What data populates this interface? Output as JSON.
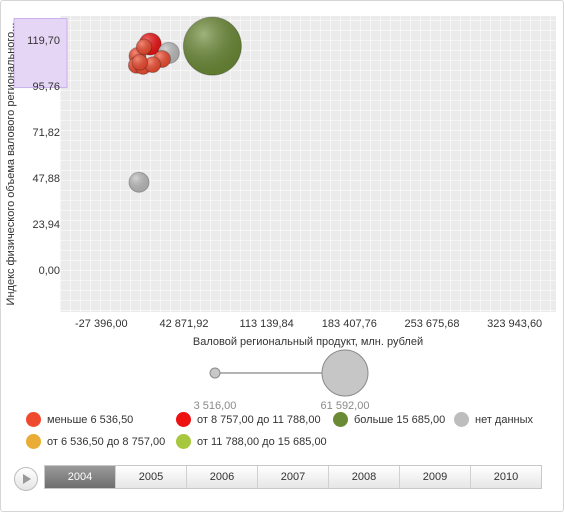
{
  "chart_data": {
    "type": "bubble",
    "title": "",
    "xlabel": "Валовой региональный продукт, млн. рублей",
    "ylabel": "Индекс физического объема валового регионального...",
    "xlim": [
      -62530,
      359078
    ],
    "ylim": [
      -21,
      133
    ],
    "x_ticks": [
      "-27 396,00",
      "42 871,92",
      "113 139,84",
      "183 407,76",
      "253 675,68",
      "323 943,60"
    ],
    "x_tick_values": [
      -27396,
      42871.92,
      113139.84,
      183407.76,
      253675.68,
      323943.6
    ],
    "y_ticks": [
      "119,70",
      "95,76",
      "71,82",
      "47,88",
      "23,94",
      "0,00"
    ],
    "y_tick_values": [
      119.7,
      95.76,
      71.82,
      47.88,
      23.94,
      0
    ],
    "highlighted_y_range": [
      95.76,
      131.67
    ],
    "grid": true,
    "points": [
      {
        "x": 14100,
        "y": 118.4,
        "size": 9000,
        "group": 1
      },
      {
        "x": 8900,
        "y": 117.0,
        "size": 4300,
        "group": 0
      },
      {
        "x": 3300,
        "y": 112.2,
        "size": 5200,
        "group": 0
      },
      {
        "x": 2500,
        "y": 107.4,
        "size": 4800,
        "group": 0
      },
      {
        "x": 5300,
        "y": 108.9,
        "size": 4500,
        "group": 0
      },
      {
        "x": 8100,
        "y": 106.8,
        "size": 4700,
        "group": 0
      },
      {
        "x": 16200,
        "y": 107.7,
        "size": 4600,
        "group": 0
      },
      {
        "x": 24200,
        "y": 110.6,
        "size": 5200,
        "group": 0
      },
      {
        "x": 29900,
        "y": 113.8,
        "size": 8200,
        "group": 3
      },
      {
        "x": 67000,
        "y": 117.3,
        "size": 61592,
        "group": 2
      },
      {
        "x": 4600,
        "y": 46.5,
        "size": 7300,
        "group": 3
      }
    ],
    "size_range": {
      "min_label": "3 516,00",
      "max_label": "61 592,00",
      "min": 3516,
      "max": 61592
    },
    "legend": [
      {
        "label": "меньше 6 536,50",
        "color": "#f04a2e"
      },
      {
        "label": "от 8 757,00 до 11 788,00",
        "color": "#ee1111"
      },
      {
        "label": "больше 15 685,00",
        "color": "#6b8a35"
      },
      {
        "label": "нет данных",
        "color": "#bdbdbd"
      },
      {
        "label": "от 6 536,50 до 8 757,00",
        "color": "#e9ad35"
      },
      {
        "label": "от 11 788,00 до 15 685,00",
        "color": "#a7c73e"
      }
    ]
  },
  "timeline": {
    "years": [
      "2004",
      "2005",
      "2006",
      "2007",
      "2008",
      "2009",
      "2010"
    ],
    "active": "2004"
  }
}
